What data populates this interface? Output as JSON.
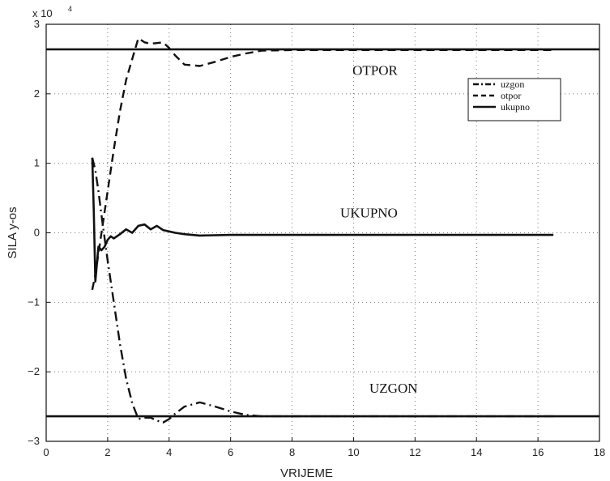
{
  "chart_data": {
    "type": "line",
    "title": "",
    "xlabel": "VRIJEME",
    "ylabel": "SILA y-os",
    "y_multiplier": "x 10",
    "y_multiplier_exp": "4",
    "xlim": [
      0,
      18
    ],
    "ylim": [
      -3,
      3
    ],
    "x_ticks": [
      0,
      2,
      4,
      6,
      8,
      10,
      12,
      14,
      16,
      18
    ],
    "y_ticks": [
      -3,
      -2,
      -1,
      0,
      1,
      2,
      3
    ],
    "grid": true,
    "legend_position": "upper-right",
    "annotations": [
      {
        "text": "OTPOR",
        "x": 10.7,
        "y": 2.27
      },
      {
        "text": "UKUPNO",
        "x": 10.5,
        "y": 0.22
      },
      {
        "text": "UZGON",
        "x": 11.3,
        "y": -2.3
      }
    ],
    "series": [
      {
        "name": "uzgon",
        "style": "dashdot",
        "x": [
          1.5,
          1.6,
          1.7,
          1.8,
          2.0,
          2.2,
          2.4,
          2.6,
          2.8,
          3.0,
          3.2,
          3.4,
          3.6,
          3.8,
          4.0,
          4.2,
          4.5,
          5.0,
          5.5,
          6.0,
          6.5,
          7.0,
          8.0,
          10.0,
          12.0,
          14.0,
          16.5
        ],
        "values": [
          1.08,
          0.9,
          0.6,
          0.25,
          -0.4,
          -1.0,
          -1.6,
          -2.1,
          -2.45,
          -2.68,
          -2.66,
          -2.66,
          -2.7,
          -2.73,
          -2.68,
          -2.6,
          -2.5,
          -2.44,
          -2.5,
          -2.57,
          -2.62,
          -2.64,
          -2.64,
          -2.64,
          -2.64,
          -2.64,
          -2.64
        ]
      },
      {
        "name": "otpor",
        "style": "dashed",
        "x": [
          1.5,
          1.6,
          1.7,
          1.8,
          2.0,
          2.2,
          2.4,
          2.6,
          2.8,
          3.0,
          3.2,
          3.4,
          3.6,
          3.8,
          4.0,
          4.2,
          4.5,
          5.0,
          5.5,
          6.0,
          6.5,
          7.0,
          8.0,
          10.0,
          12.0,
          14.0,
          16.5
        ],
        "values": [
          -0.82,
          -0.6,
          -0.3,
          0.0,
          0.6,
          1.2,
          1.75,
          2.2,
          2.5,
          2.8,
          2.74,
          2.72,
          2.73,
          2.74,
          2.66,
          2.55,
          2.42,
          2.4,
          2.46,
          2.53,
          2.58,
          2.62,
          2.63,
          2.63,
          2.63,
          2.63,
          2.63
        ]
      },
      {
        "name": "ukupno",
        "style": "solid",
        "x": [
          1.5,
          1.55,
          1.6,
          1.7,
          1.8,
          1.9,
          2.0,
          2.1,
          2.2,
          2.4,
          2.6,
          2.8,
          3.0,
          3.2,
          3.4,
          3.6,
          3.8,
          4.0,
          4.2,
          4.5,
          5.0,
          6.0,
          8.0,
          10.0,
          12.0,
          14.0,
          16.5
        ],
        "values": [
          1.08,
          0.3,
          -0.7,
          -0.2,
          -0.25,
          -0.2,
          -0.1,
          -0.05,
          -0.08,
          -0.02,
          0.05,
          0.0,
          0.1,
          0.12,
          0.05,
          0.1,
          0.04,
          0.02,
          0.0,
          -0.02,
          -0.04,
          -0.03,
          -0.03,
          -0.03,
          -0.03,
          -0.03,
          -0.03
        ]
      },
      {
        "name": "",
        "style": "solid",
        "x": [
          0,
          18
        ],
        "values": [
          2.64,
          2.64
        ]
      },
      {
        "name": "",
        "style": "solid",
        "x": [
          0,
          18
        ],
        "values": [
          -2.64,
          -2.64
        ]
      }
    ]
  }
}
